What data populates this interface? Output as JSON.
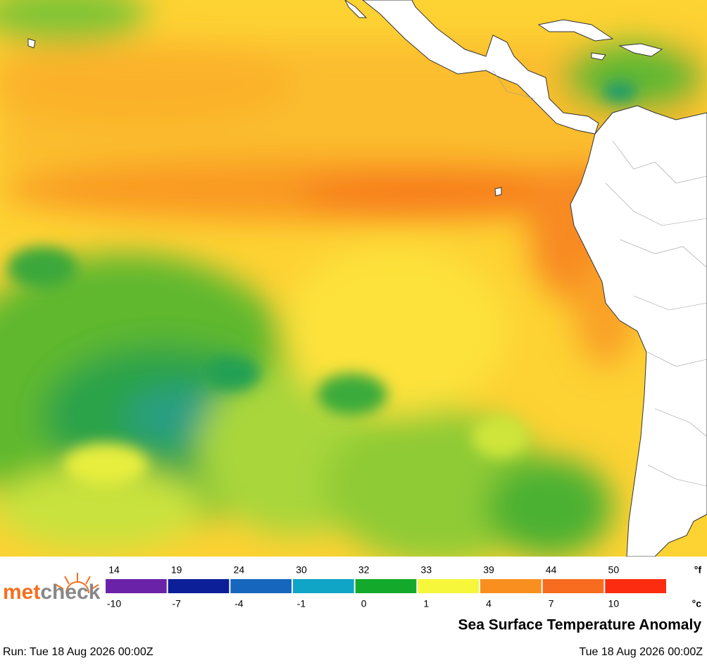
{
  "logo": {
    "first": "met",
    "second": "check"
  },
  "legend": {
    "unit_top": "°f",
    "unit_bottom": "°c",
    "bins": [
      {
        "f": 14,
        "c": -10,
        "color": "#6a22a8"
      },
      {
        "f": 19,
        "c": -7,
        "color": "#0c1e98"
      },
      {
        "f": 24,
        "c": -4,
        "color": "#1766bd"
      },
      {
        "f": 30,
        "c": -1,
        "color": "#10a4c6"
      },
      {
        "f": 32,
        "c": 0,
        "color": "#13aa2c"
      },
      {
        "f": 33,
        "c": 1,
        "color": "#f6f63a"
      },
      {
        "f": 39,
        "c": 4,
        "color": "#f98f1f"
      },
      {
        "f": 44,
        "c": 7,
        "color": "#f76c1e"
      },
      {
        "f": 50,
        "c": 10,
        "color": "#fb2c10"
      }
    ]
  },
  "title": "Sea Surface Temperature Anomaly",
  "run": "Run: Tue 18 Aug 2026 00:00Z",
  "valid": "Tue 18 Aug 2026 00:00Z"
}
